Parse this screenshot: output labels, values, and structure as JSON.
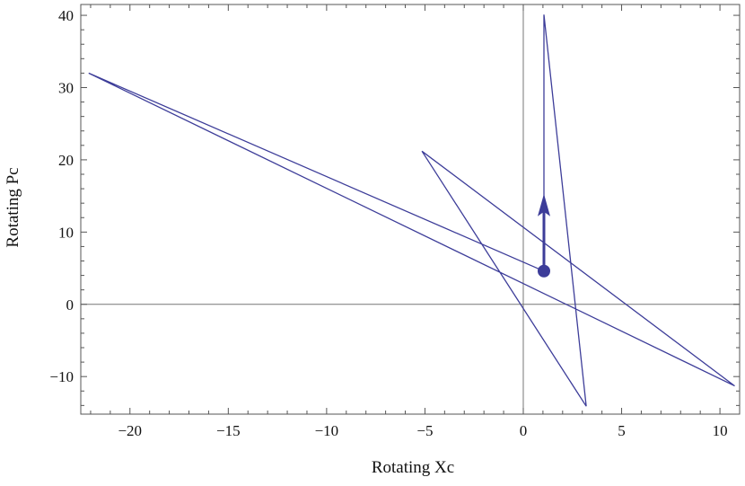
{
  "chart_data": {
    "type": "line",
    "xlabel": "Rotating Xc",
    "ylabel": "Rotating Pc",
    "xlim": [
      -22.5,
      11
    ],
    "ylim": [
      -15.2,
      41.5
    ],
    "xticks": [
      -20,
      -15,
      -10,
      -5,
      0,
      5,
      10
    ],
    "yticks": [
      -10,
      0,
      10,
      20,
      30,
      40
    ],
    "xtick_labels": [
      "−20",
      "−15",
      "−10",
      "−5",
      "0",
      "5",
      "10"
    ],
    "ytick_labels": [
      "−10",
      "0",
      "10",
      "20",
      "30",
      "40"
    ],
    "zero_lines": true,
    "grid": false,
    "line_color": "#3d3d99",
    "series": [
      {
        "points": [
          [
            1.05,
            4.6
          ],
          [
            -22.1,
            32
          ],
          [
            10.75,
            -11.3
          ],
          [
            -5.15,
            21.2
          ],
          [
            3.2,
            -14.1
          ],
          [
            1.05,
            40.1
          ],
          [
            1.05,
            4.6
          ]
        ]
      }
    ],
    "marker": {
      "start": [
        1.05,
        4.6
      ],
      "arrow_tip": [
        1.05,
        15.3
      ]
    }
  }
}
